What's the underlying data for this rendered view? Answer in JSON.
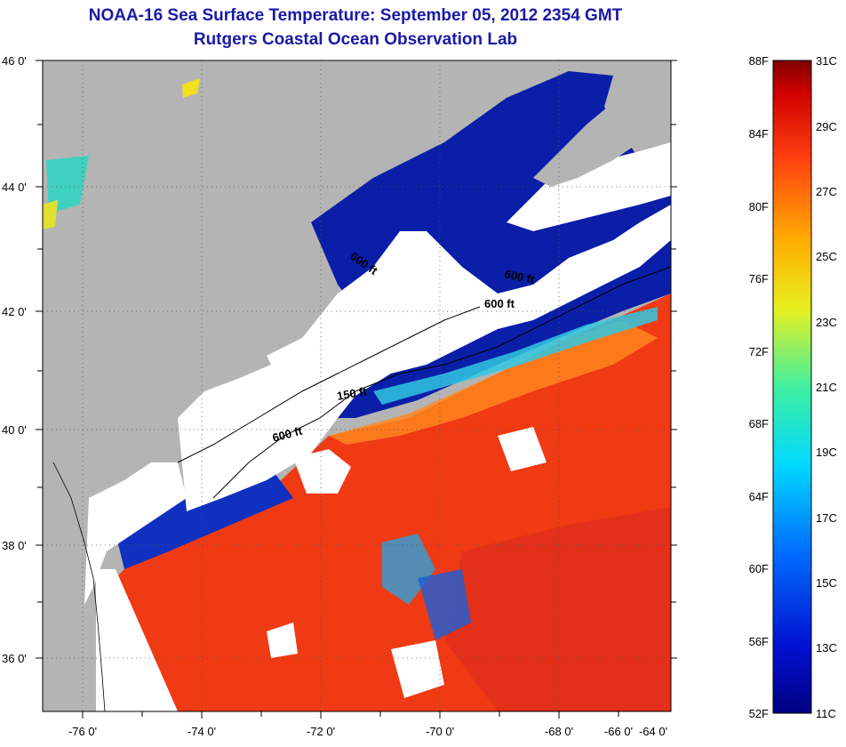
{
  "title": "NOAA-16 Sea Surface Temperature:  September 05, 2012 2354 GMT",
  "subtitle": "Rutgers Coastal Ocean Observation Lab",
  "map": {
    "lon_labels": [
      "-76 0'",
      "-74 0'",
      "-72 0'",
      "-70 0'",
      "-68 0'",
      "-66 0'",
      "-64 0'"
    ],
    "lat_labels": [
      "46 0'",
      "44 0'",
      "42 0'",
      "40 0'",
      "38 0'",
      "36 0'"
    ],
    "contour_labels": [
      "600 ft",
      "600 ft",
      "600 ft",
      "150 ft",
      "600 ft"
    ],
    "colors": {
      "land": "#b4b4b4",
      "cloud": "#ffffff",
      "cold": "#0a1ea8",
      "warm": "#f03a14"
    }
  },
  "colorbar": {
    "fahrenheit_labels": [
      "88F",
      "84F",
      "80F",
      "76F",
      "72F",
      "68F",
      "64F",
      "60F",
      "56F",
      "52F"
    ],
    "celsius_labels": [
      "31C",
      "29C",
      "27C",
      "25C",
      "23C",
      "21C",
      "19C",
      "17C",
      "15C",
      "13C",
      "11C"
    ]
  }
}
